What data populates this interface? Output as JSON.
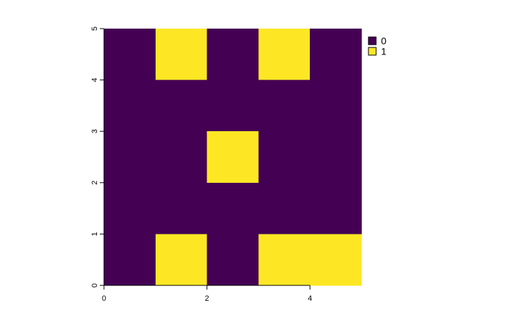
{
  "chart_data": {
    "type": "heatmap",
    "title": "",
    "xlabel": "",
    "ylabel": "",
    "xlim": [
      0,
      5
    ],
    "ylim": [
      0,
      5
    ],
    "x_ticks": [
      "0",
      "2",
      "4"
    ],
    "x_tick_values": [
      0,
      2,
      4
    ],
    "y_ticks": [
      "0",
      "1",
      "2",
      "3",
      "4",
      "5"
    ],
    "y_tick_values": [
      0,
      1,
      2,
      3,
      4,
      5
    ],
    "rows_top_to_bottom": [
      [
        0,
        1,
        0,
        1,
        0
      ],
      [
        0,
        0,
        0,
        0,
        0
      ],
      [
        0,
        0,
        1,
        0,
        0
      ],
      [
        0,
        0,
        0,
        0,
        0
      ],
      [
        0,
        1,
        0,
        1,
        1
      ]
    ],
    "legend": [
      {
        "label": "0",
        "value": 0,
        "color": "#440154"
      },
      {
        "label": "1",
        "value": 1,
        "color": "#FDE725"
      }
    ],
    "legend_position": "right"
  }
}
